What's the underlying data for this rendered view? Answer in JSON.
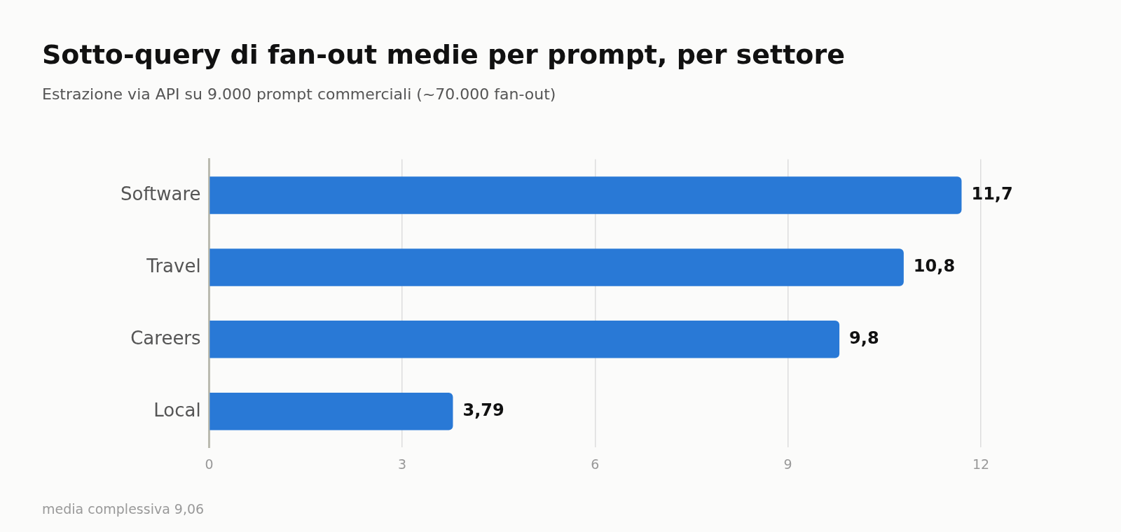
{
  "chart_data": {
    "type": "bar",
    "orientation": "horizontal",
    "title": "Sotto-query di fan-out medie per prompt, per settore",
    "subtitle": "Estrazione via API su 9.000 prompt commerciali (~70.000 fan-out)",
    "categories": [
      "Software",
      "Travel",
      "Careers",
      "Local"
    ],
    "values": [
      11.7,
      10.8,
      9.8,
      3.79
    ],
    "value_labels": [
      "11,7",
      "10,8",
      "9,8",
      "3,79"
    ],
    "color": "#2979d6",
    "xlim": [
      0,
      12
    ],
    "xticks": [
      0,
      3,
      6,
      9,
      12
    ],
    "grid": "x",
    "legend": false,
    "annotations": [
      "media complessiva 9,06"
    ]
  }
}
